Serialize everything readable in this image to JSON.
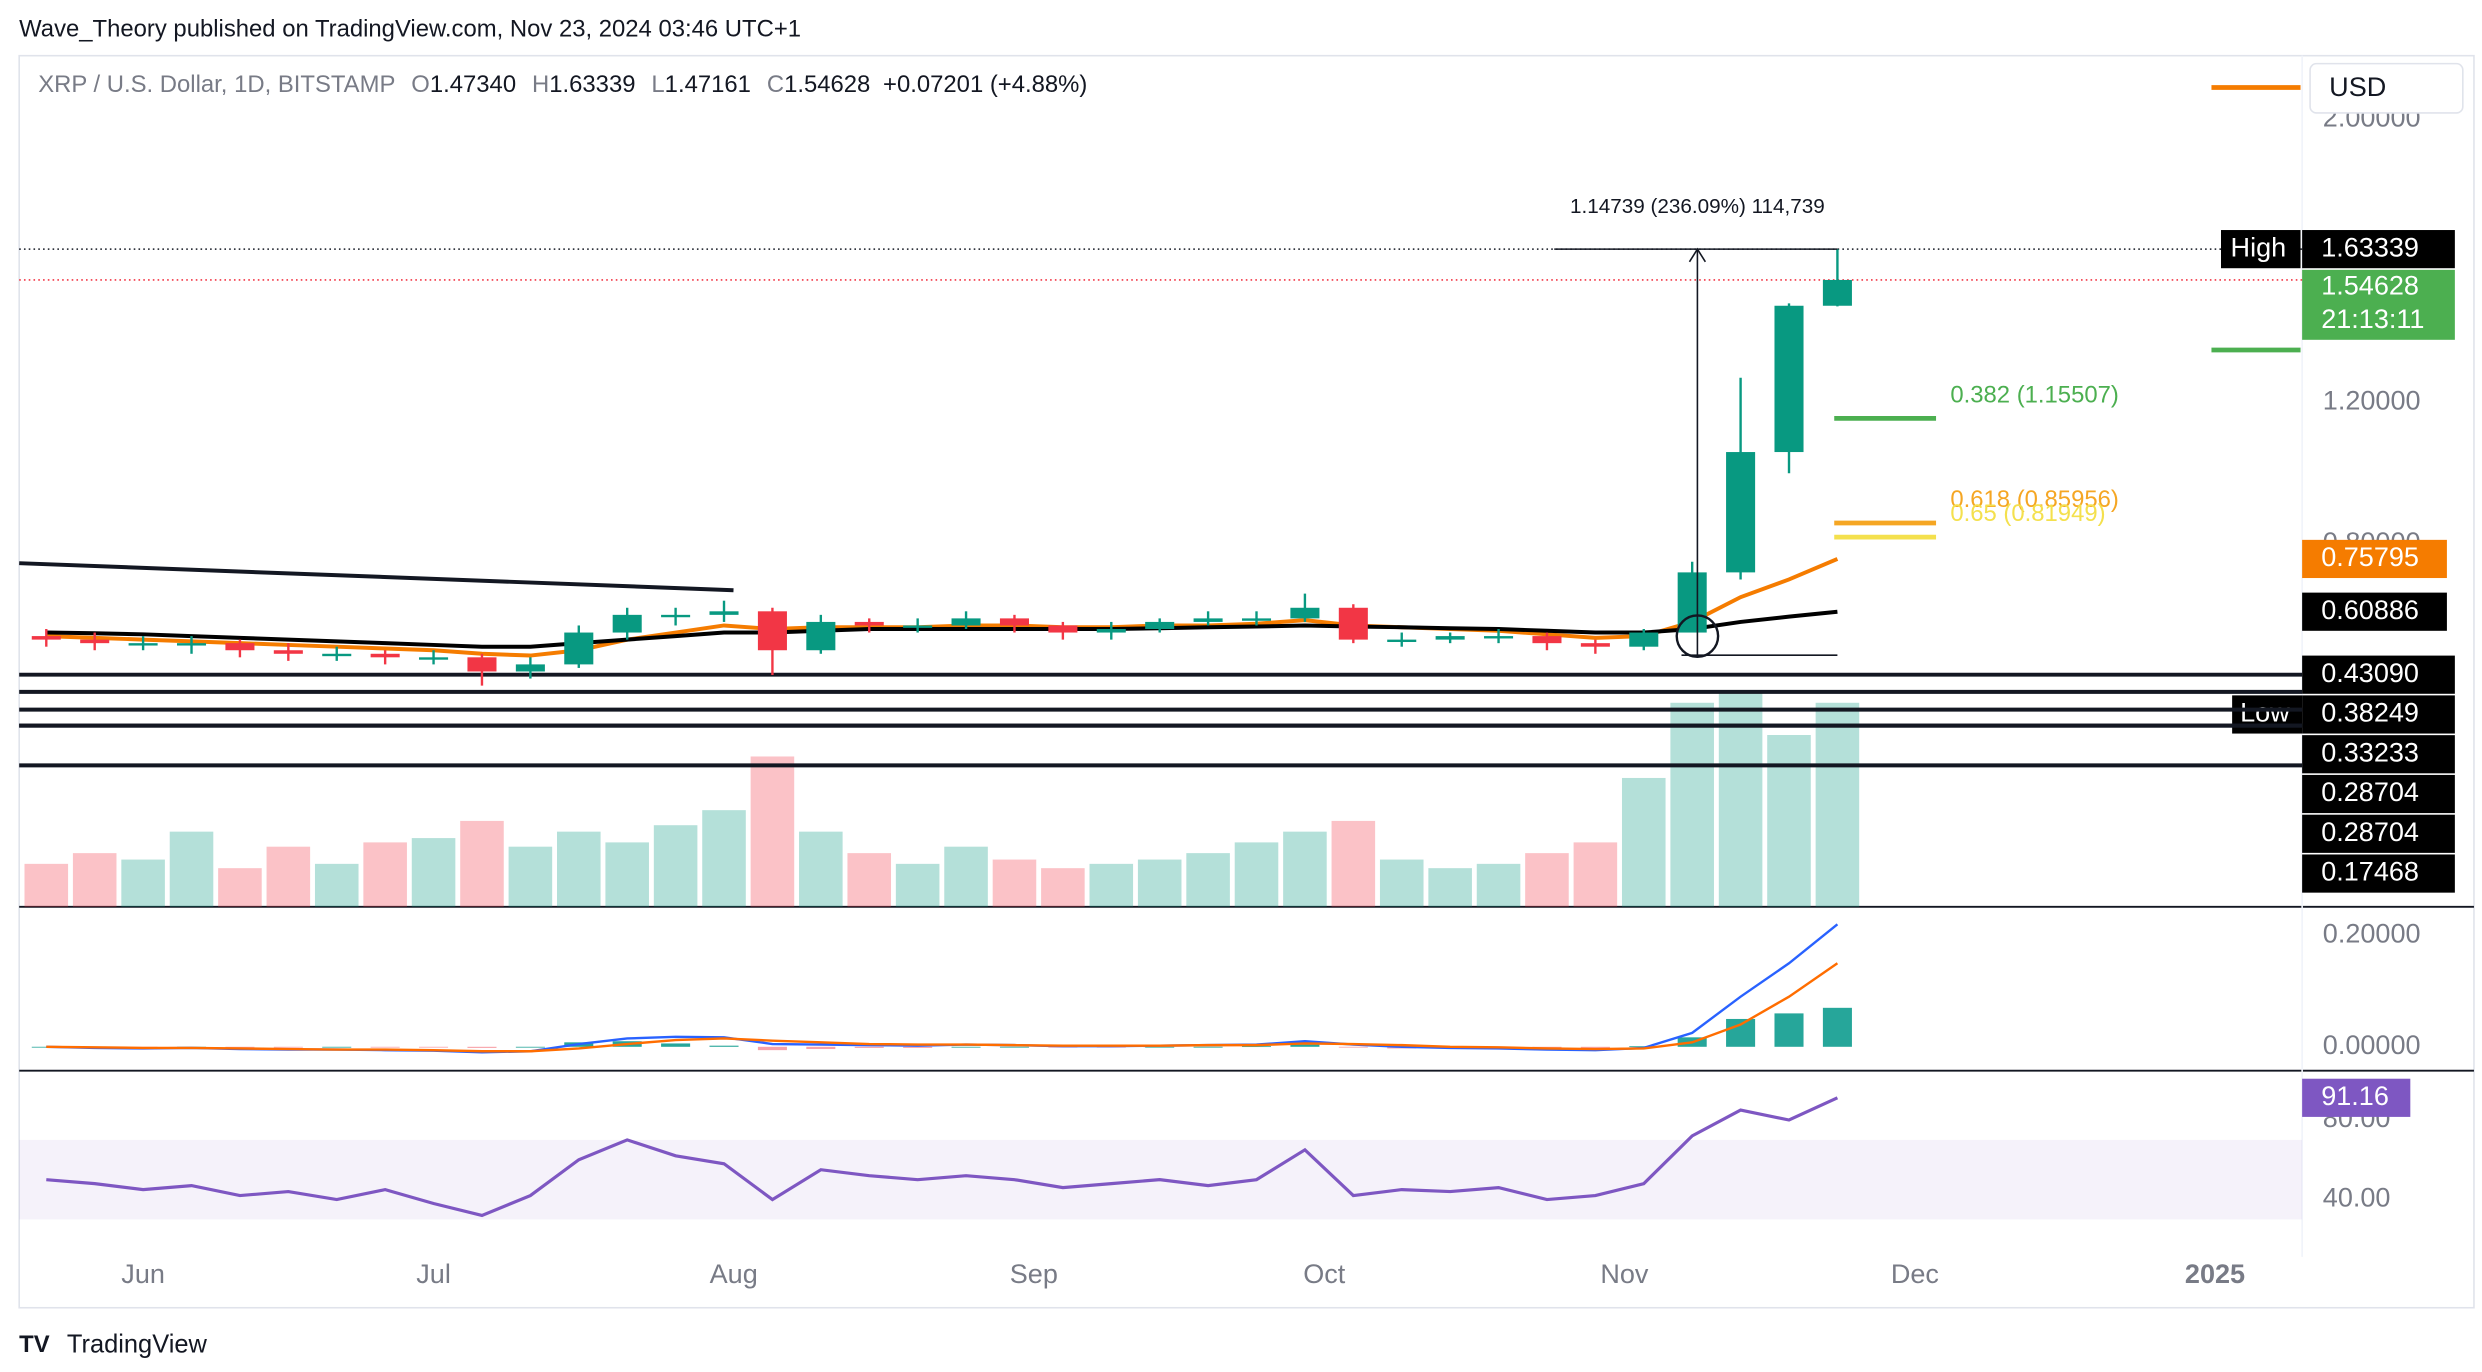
{
  "header": "Wave_Theory published on TradingView.com, Nov 23, 2024 03:46 UTC+1",
  "footer": "TradingView",
  "currency": "USD",
  "chart_data": [
    {
      "type": "candlestick",
      "title": "XRP / U.S. Dollar, 1D, BITSTAMP",
      "legend": [
        {
          "key": "O",
          "value": "1.47340"
        },
        {
          "key": "H",
          "value": "1.63339"
        },
        {
          "key": "L",
          "value": "1.47161"
        },
        {
          "key": "C",
          "value": "1.54628"
        }
      ],
      "change": "+0.07201 (+4.88%)",
      "up_color": "#089981",
      "down_color": "#f23645",
      "open": [
        0.54,
        0.53,
        0.52,
        0.52,
        0.52,
        0.5,
        0.49,
        0.49,
        0.48,
        0.48,
        0.44,
        0.46,
        0.55,
        0.6,
        0.6,
        0.61,
        0.5,
        0.58,
        0.57,
        0.57,
        0.59,
        0.57,
        0.55,
        0.56,
        0.58,
        0.59,
        0.59,
        0.62,
        0.53,
        0.53,
        0.54,
        0.54,
        0.52,
        0.51,
        0.55,
        0.72,
        1.06,
        1.4734
      ],
      "high": [
        0.56,
        0.55,
        0.54,
        0.54,
        0.53,
        0.52,
        0.51,
        0.5,
        0.5,
        0.49,
        0.48,
        0.57,
        0.62,
        0.62,
        0.64,
        0.62,
        0.6,
        0.59,
        0.59,
        0.61,
        0.6,
        0.58,
        0.58,
        0.59,
        0.61,
        0.61,
        0.66,
        0.63,
        0.55,
        0.55,
        0.56,
        0.55,
        0.53,
        0.56,
        0.75,
        1.27,
        1.48,
        1.63339
      ],
      "low": [
        0.51,
        0.5,
        0.5,
        0.49,
        0.48,
        0.47,
        0.47,
        0.46,
        0.46,
        0.4,
        0.42,
        0.45,
        0.53,
        0.57,
        0.58,
        0.43,
        0.49,
        0.55,
        0.55,
        0.56,
        0.55,
        0.53,
        0.53,
        0.55,
        0.57,
        0.57,
        0.58,
        0.52,
        0.51,
        0.52,
        0.52,
        0.5,
        0.49,
        0.5,
        0.55,
        0.7,
        1.0,
        1.47161
      ],
      "close": [
        0.53,
        0.52,
        0.52,
        0.52,
        0.5,
        0.49,
        0.49,
        0.48,
        0.48,
        0.44,
        0.46,
        0.55,
        0.6,
        0.6,
        0.61,
        0.5,
        0.58,
        0.57,
        0.57,
        0.59,
        0.57,
        0.55,
        0.56,
        0.58,
        0.59,
        0.59,
        0.62,
        0.53,
        0.53,
        0.54,
        0.54,
        0.52,
        0.51,
        0.55,
        0.72,
        1.06,
        1.4734,
        1.54628
      ],
      "volume": [
        20,
        25,
        22,
        35,
        18,
        28,
        20,
        30,
        32,
        40,
        28,
        35,
        30,
        38,
        45,
        70,
        35,
        25,
        20,
        28,
        22,
        18,
        20,
        22,
        25,
        30,
        35,
        40,
        22,
        18,
        20,
        25,
        30,
        60,
        95,
        100,
        80,
        95
      ],
      "overlays": [
        {
          "color": "#f57c00",
          "last_label": "0.75795",
          "values": [
            0.54,
            0.535,
            0.53,
            0.525,
            0.52,
            0.515,
            0.51,
            0.505,
            0.5,
            0.49,
            0.485,
            0.5,
            0.53,
            0.55,
            0.57,
            0.56,
            0.565,
            0.565,
            0.565,
            0.57,
            0.57,
            0.565,
            0.565,
            0.57,
            0.57,
            0.575,
            0.585,
            0.57,
            0.565,
            0.56,
            0.555,
            0.545,
            0.535,
            0.54,
            0.58,
            0.65,
            0.7,
            0.75795
          ]
        },
        {
          "color": "#000000",
          "last_label": "0.60886",
          "values": [
            0.55,
            0.548,
            0.545,
            0.54,
            0.535,
            0.53,
            0.525,
            0.52,
            0.515,
            0.51,
            0.51,
            0.52,
            0.53,
            0.54,
            0.55,
            0.55,
            0.555,
            0.56,
            0.56,
            0.56,
            0.56,
            0.56,
            0.56,
            0.562,
            0.565,
            0.567,
            0.57,
            0.567,
            0.565,
            0.562,
            0.56,
            0.555,
            0.55,
            0.55,
            0.56,
            0.58,
            0.595,
            0.60886
          ]
        }
      ],
      "high_marker": {
        "tag": "High",
        "value": 1.63339,
        "label": "1.63339"
      },
      "last": {
        "value": 1.54628,
        "label": "1.54628",
        "countdown": "21:13:11",
        "color": "#4caf50"
      },
      "measure": {
        "value": 1.14739,
        "label": "1.14739 (236.09%) 114,739"
      },
      "fib": [
        {
          "value": 1.15507,
          "label": "0.382 (1.15507)",
          "color": "#4caf50"
        },
        {
          "value": 0.85956,
          "label": "0.618 (0.85956)",
          "color": "#f5a623"
        },
        {
          "value": 0.81949,
          "label": "0.65 (0.81949)",
          "color": "#f4e04d"
        }
      ],
      "levels": [
        {
          "value": 0.4309,
          "label": "0.43090"
        },
        {
          "value": 0.38249,
          "label": "0.38249",
          "tag": "Low"
        },
        {
          "value": 0.33233,
          "label": "0.33233"
        },
        {
          "value": 0.28704,
          "label": "0.28704"
        },
        {
          "value": 0.28704,
          "label": "0.28704"
        },
        {
          "value": 0.17468,
          "label": "0.17468"
        }
      ],
      "ylim": [
        -0.225,
        2.18
      ],
      "yticks": [
        {
          "value": 2,
          "label": "2.00000"
        },
        {
          "value": 1.2,
          "label": "1.20000"
        },
        {
          "value": 0.8,
          "label": "0.80000"
        }
      ],
      "xlim": [
        -0.56,
        46.6
      ],
      "xticks": [
        {
          "value": 2,
          "label": "Jun"
        },
        {
          "value": 8,
          "label": "Jul"
        },
        {
          "value": 14.2,
          "label": "Aug"
        },
        {
          "value": 20.4,
          "label": "Sep"
        },
        {
          "value": 26.4,
          "label": "Oct"
        },
        {
          "value": 32.6,
          "label": "Nov"
        },
        {
          "value": 38.6,
          "label": "Dec"
        },
        {
          "value": 44.8,
          "label": "2025"
        }
      ]
    },
    {
      "type": "macd",
      "series": [
        {
          "color": "#2962ff",
          "values": [
            0,
            -0.002,
            -0.003,
            -0.002,
            -0.004,
            -0.005,
            -0.005,
            -0.006,
            -0.007,
            -0.01,
            -0.008,
            0.005,
            0.015,
            0.018,
            0.017,
            0.005,
            0.004,
            0.003,
            0.002,
            0.004,
            0.003,
            0.001,
            0.001,
            0.002,
            0.003,
            0.004,
            0.01,
            0.004,
            0,
            -0.002,
            -0.003,
            -0.005,
            -0.006,
            -0.002,
            0.025,
            0.09,
            0.15,
            0.22
          ]
        },
        {
          "color": "#ff6d00",
          "values": [
            0,
            -0.001,
            -0.002,
            -0.002,
            -0.003,
            -0.004,
            -0.005,
            -0.005,
            -0.006,
            -0.008,
            -0.008,
            -0.003,
            0.005,
            0.012,
            0.015,
            0.011,
            0.008,
            0.005,
            0.004,
            0.004,
            0.003,
            0.002,
            0.002,
            0.002,
            0.003,
            0.003,
            0.006,
            0.005,
            0.003,
            0,
            -0.001,
            -0.003,
            -0.004,
            -0.003,
            0.008,
            0.04,
            0.09,
            0.15
          ]
        }
      ],
      "histogram": {
        "color": "#26a69a",
        "negative_color": "#f7a1a9",
        "values": [
          0,
          -0.001,
          -0.001,
          0,
          -0.001,
          -0.001,
          0,
          -0.001,
          -0.001,
          -0.002,
          0,
          0.008,
          0.01,
          0.006,
          0.002,
          -0.006,
          -0.004,
          -0.002,
          -0.002,
          0,
          0,
          -0.001,
          -0.001,
          0,
          0,
          0.001,
          0.004,
          -0.001,
          -0.003,
          -0.002,
          -0.002,
          -0.002,
          -0.002,
          0.001,
          0.017,
          0.05,
          0.06,
          0.07
        ]
      },
      "ylim": [
        -0.0429,
        0.2514
      ],
      "yticks": [
        {
          "value": 0.2,
          "label": "0.20000"
        },
        {
          "value": 0,
          "label": "0.00000"
        }
      ]
    },
    {
      "type": "rsi",
      "series": [
        {
          "color": "#7e57c2",
          "last_label": "91.16",
          "values": [
            50,
            48,
            45,
            47,
            42,
            44,
            40,
            45,
            38,
            32,
            42,
            60,
            70,
            62,
            58,
            40,
            55,
            52,
            50,
            52,
            50,
            46,
            48,
            50,
            47,
            50,
            65,
            42,
            45,
            44,
            46,
            40,
            42,
            48,
            72,
            85,
            80,
            91.16
          ]
        }
      ],
      "band": [
        30,
        70
      ],
      "ylim": [
        11.2,
        104.8
      ],
      "yticks": [
        {
          "value": 80,
          "label": "80.00"
        },
        {
          "value": 40,
          "label": "40.00"
        }
      ]
    }
  ]
}
